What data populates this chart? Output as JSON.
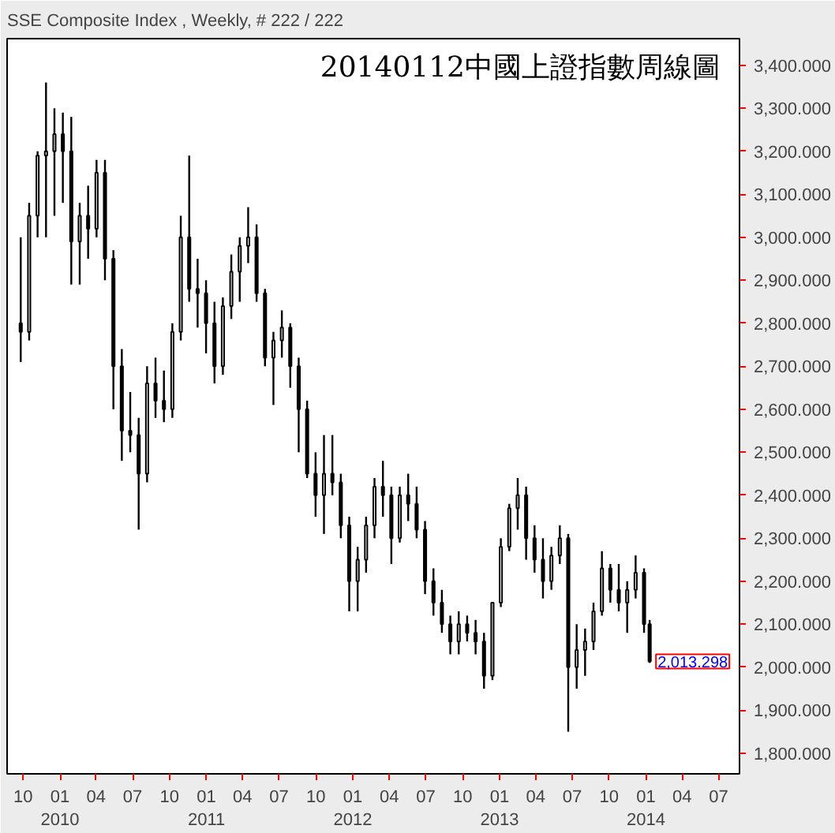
{
  "chart_data": {
    "type": "candlestick",
    "title": "20140112中國上證指數周線圖",
    "subtitle": "SSE Composite Index , Weekly, # 222 / 222",
    "x": [
      "2009-09-25",
      "2009-10-16",
      "2009-11-06",
      "2009-11-27",
      "2009-12-18",
      "2010-01-08",
      "2010-01-29",
      "2010-02-19",
      "2010-03-12",
      "2010-04-02",
      "2010-04-23",
      "2010-05-14",
      "2010-06-04",
      "2010-06-25",
      "2010-07-16",
      "2010-08-06",
      "2010-08-27",
      "2010-09-17",
      "2010-10-08",
      "2010-10-29",
      "2010-11-19",
      "2010-12-10",
      "2010-12-31",
      "2011-01-21",
      "2011-02-11",
      "2011-03-04",
      "2011-03-25",
      "2011-04-15",
      "2011-05-06",
      "2011-05-27",
      "2011-06-17",
      "2011-07-08",
      "2011-07-29",
      "2011-08-19",
      "2011-09-09",
      "2011-09-30",
      "2011-10-21",
      "2011-11-11",
      "2011-12-02",
      "2011-12-23",
      "2012-01-13",
      "2012-02-03",
      "2012-02-24",
      "2012-03-16",
      "2012-04-06",
      "2012-04-27",
      "2012-05-18",
      "2012-06-08",
      "2012-06-29",
      "2012-07-20",
      "2012-08-10",
      "2012-08-31",
      "2012-09-21",
      "2012-10-12",
      "2012-11-02",
      "2012-11-23",
      "2012-12-14",
      "2013-01-04",
      "2013-01-25",
      "2013-02-15",
      "2013-03-08",
      "2013-03-29",
      "2013-04-19",
      "2013-05-10",
      "2013-05-31",
      "2013-06-21",
      "2013-07-12",
      "2013-08-02",
      "2013-08-23",
      "2013-09-13",
      "2013-10-04",
      "2013-10-25",
      "2013-11-15",
      "2013-12-06",
      "2013-12-27",
      "2014-01-10"
    ],
    "ohlc": [
      [
        2800,
        3000,
        2710,
        2780
      ],
      [
        2780,
        3080,
        2760,
        3050
      ],
      [
        3050,
        3200,
        3000,
        3190
      ],
      [
        3190,
        3360,
        3000,
        3200
      ],
      [
        3200,
        3300,
        3050,
        3240
      ],
      [
        3240,
        3290,
        3080,
        3200
      ],
      [
        3200,
        3280,
        2890,
        2990
      ],
      [
        2990,
        3080,
        2890,
        3050
      ],
      [
        3050,
        3120,
        2950,
        3020
      ],
      [
        3020,
        3180,
        3000,
        3150
      ],
      [
        3150,
        3180,
        2900,
        2950
      ],
      [
        2950,
        2970,
        2600,
        2700
      ],
      [
        2700,
        2740,
        2480,
        2550
      ],
      [
        2550,
        2640,
        2500,
        2540
      ],
      [
        2540,
        2580,
        2320,
        2450
      ],
      [
        2450,
        2700,
        2430,
        2660
      ],
      [
        2660,
        2720,
        2580,
        2620
      ],
      [
        2620,
        2690,
        2570,
        2600
      ],
      [
        2600,
        2800,
        2580,
        2780
      ],
      [
        2780,
        3050,
        2760,
        3000
      ],
      [
        3000,
        3190,
        2850,
        2880
      ],
      [
        2880,
        2950,
        2790,
        2870
      ],
      [
        2870,
        2900,
        2730,
        2800
      ],
      [
        2800,
        2850,
        2660,
        2700
      ],
      [
        2700,
        2860,
        2680,
        2840
      ],
      [
        2840,
        2960,
        2810,
        2920
      ],
      [
        2920,
        3000,
        2850,
        2980
      ],
      [
        2980,
        3070,
        2940,
        3000
      ],
      [
        3000,
        3030,
        2850,
        2870
      ],
      [
        2870,
        2880,
        2700,
        2720
      ],
      [
        2720,
        2780,
        2610,
        2760
      ],
      [
        2760,
        2830,
        2720,
        2790
      ],
      [
        2790,
        2800,
        2650,
        2700
      ],
      [
        2700,
        2720,
        2500,
        2600
      ],
      [
        2600,
        2620,
        2440,
        2450
      ],
      [
        2450,
        2500,
        2350,
        2400
      ],
      [
        2400,
        2540,
        2310,
        2450
      ],
      [
        2450,
        2540,
        2400,
        2430
      ],
      [
        2430,
        2450,
        2300,
        2330
      ],
      [
        2330,
        2350,
        2130,
        2200
      ],
      [
        2200,
        2280,
        2130,
        2250
      ],
      [
        2250,
        2350,
        2220,
        2330
      ],
      [
        2330,
        2440,
        2300,
        2420
      ],
      [
        2420,
        2480,
        2350,
        2400
      ],
      [
        2400,
        2420,
        2240,
        2300
      ],
      [
        2300,
        2420,
        2290,
        2400
      ],
      [
        2400,
        2450,
        2340,
        2380
      ],
      [
        2380,
        2420,
        2300,
        2320
      ],
      [
        2320,
        2340,
        2170,
        2200
      ],
      [
        2200,
        2230,
        2120,
        2150
      ],
      [
        2150,
        2180,
        2080,
        2100
      ],
      [
        2100,
        2120,
        2030,
        2060
      ],
      [
        2060,
        2130,
        2030,
        2100
      ],
      [
        2100,
        2120,
        2060,
        2080
      ],
      [
        2080,
        2110,
        2030,
        2060
      ],
      [
        2060,
        2080,
        1950,
        1980
      ],
      [
        1980,
        2150,
        1970,
        2150
      ],
      [
        2150,
        2300,
        2140,
        2280
      ],
      [
        2280,
        2380,
        2270,
        2370
      ],
      [
        2370,
        2440,
        2320,
        2400
      ],
      [
        2400,
        2420,
        2250,
        2300
      ],
      [
        2300,
        2330,
        2220,
        2250
      ],
      [
        2250,
        2300,
        2160,
        2200
      ],
      [
        2200,
        2280,
        2180,
        2260
      ],
      [
        2260,
        2330,
        2240,
        2300
      ],
      [
        2300,
        2310,
        1850,
        2000
      ],
      [
        2000,
        2100,
        1950,
        2040
      ],
      [
        2040,
        2090,
        1980,
        2060
      ],
      [
        2060,
        2150,
        2040,
        2130
      ],
      [
        2130,
        2270,
        2120,
        2230
      ],
      [
        2230,
        2240,
        2150,
        2180
      ],
      [
        2180,
        2240,
        2130,
        2150
      ],
      [
        2150,
        2200,
        2080,
        2180
      ],
      [
        2180,
        2260,
        2160,
        2220
      ],
      [
        2220,
        2230,
        2080,
        2100
      ],
      [
        2100,
        2110,
        2010,
        2013.298
      ]
    ],
    "color": "#000000",
    "xlim": [
      "2009-08-22",
      "2014-08-22"
    ],
    "xticks": [
      {
        "value": "2009-10",
        "label": "10"
      },
      {
        "value": "2010-01",
        "label": "01\n2010"
      },
      {
        "value": "2010-04",
        "label": "04"
      },
      {
        "value": "2010-07",
        "label": "07"
      },
      {
        "value": "2010-10",
        "label": "10"
      },
      {
        "value": "2011-01",
        "label": "01\n2011"
      },
      {
        "value": "2011-04",
        "label": "04"
      },
      {
        "value": "2011-07",
        "label": "07"
      },
      {
        "value": "2011-10",
        "label": "10"
      },
      {
        "value": "2012-01",
        "label": "01\n2012"
      },
      {
        "value": "2012-04",
        "label": "04"
      },
      {
        "value": "2012-07",
        "label": "07"
      },
      {
        "value": "2012-10",
        "label": "10"
      },
      {
        "value": "2013-01",
        "label": "01\n2013"
      },
      {
        "value": "2013-04",
        "label": "04"
      },
      {
        "value": "2013-07",
        "label": "07"
      },
      {
        "value": "2013-10",
        "label": "10"
      },
      {
        "value": "2014-01",
        "label": "01\n2014"
      },
      {
        "value": "2014-04",
        "label": "04"
      },
      {
        "value": "2014-07",
        "label": "07"
      }
    ],
    "ylim": [
      1752,
      3462
    ],
    "yticks": [
      {
        "value": 1800,
        "label": "1,800.000"
      },
      {
        "value": 1900,
        "label": "1,900.000"
      },
      {
        "value": 2000,
        "label": "2,000.000"
      },
      {
        "value": 2100,
        "label": "2,100.000"
      },
      {
        "value": 2200,
        "label": "2,200.000"
      },
      {
        "value": 2300,
        "label": "2,300.000"
      },
      {
        "value": 2400,
        "label": "2,400.000"
      },
      {
        "value": 2500,
        "label": "2,500.000"
      },
      {
        "value": 2600,
        "label": "2,600.000"
      },
      {
        "value": 2700,
        "label": "2,700.000"
      },
      {
        "value": 2800,
        "label": "2,800.000"
      },
      {
        "value": 2900,
        "label": "2,900.000"
      },
      {
        "value": 3000,
        "label": "3,000.000"
      },
      {
        "value": 3100,
        "label": "3,100.000"
      },
      {
        "value": 3200,
        "label": "3,200.000"
      },
      {
        "value": 3300,
        "label": "3,300.000"
      },
      {
        "value": 3400,
        "label": "3,400.000"
      }
    ],
    "annotations": [
      {
        "text": "2,013.298",
        "x": "2014-01-10",
        "y": 2013.298
      }
    ],
    "grid": false
  }
}
